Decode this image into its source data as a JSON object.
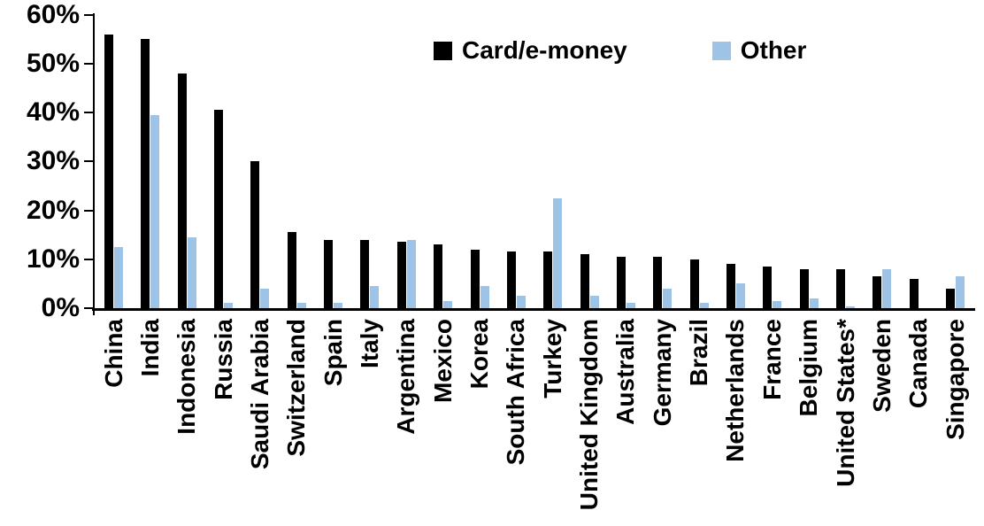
{
  "chart_data": {
    "type": "bar",
    "title": "",
    "xlabel": "",
    "ylabel": "",
    "ylim": [
      0,
      60
    ],
    "ytick_step": 10,
    "ytick_labels": [
      "0%",
      "10%",
      "20%",
      "30%",
      "40%",
      "50%",
      "60%"
    ],
    "grid": false,
    "legend_position": "top-center",
    "categories": [
      "China",
      "India",
      "Indonesia",
      "Russia",
      "Saudi Arabia",
      "Switzerland",
      "Spain",
      "Italy",
      "Argentina",
      "Mexico",
      "Korea",
      "South Africa",
      "Turkey",
      "United Kingdom",
      "Australia",
      "Germany",
      "Brazil",
      "Netherlands",
      "France",
      "Belgium",
      "United States*",
      "Sweden",
      "Canada",
      "Singapore"
    ],
    "series": [
      {
        "name": "Card/e-money",
        "color": "#000000",
        "values": [
          56,
          55,
          48,
          40.5,
          30,
          15.5,
          14,
          14,
          13.5,
          13,
          12,
          11.5,
          11.5,
          11,
          10.5,
          10.5,
          10,
          9,
          8.5,
          8,
          8,
          6.5,
          6,
          4
        ]
      },
      {
        "name": "Other",
        "color": "#9DC3E6",
        "values": [
          12.5,
          39.5,
          14.5,
          1,
          4,
          1,
          1,
          4.5,
          14,
          1.5,
          4.5,
          2.5,
          22.5,
          2.5,
          1,
          4,
          1,
          5,
          1.5,
          2,
          0.3,
          8,
          0,
          6.5
        ]
      }
    ]
  }
}
